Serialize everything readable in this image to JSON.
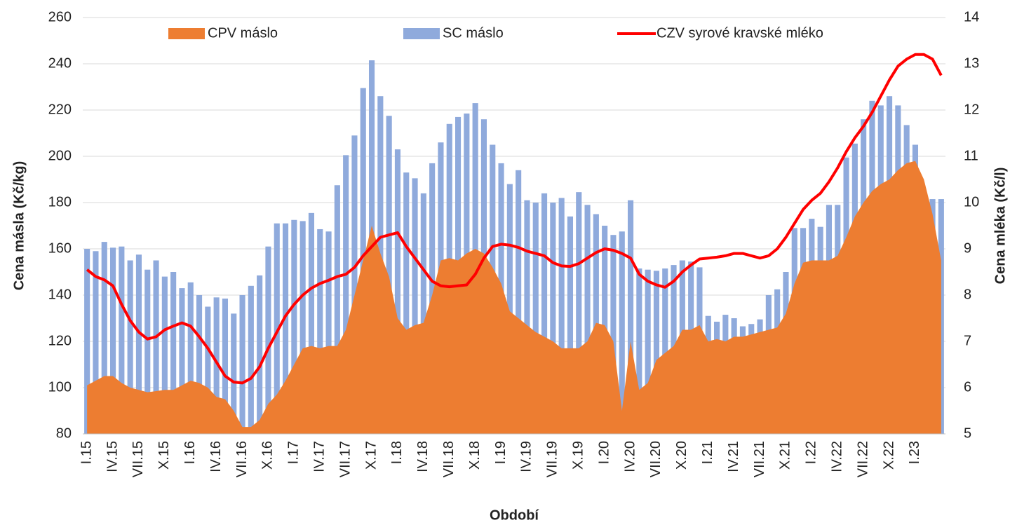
{
  "chart_data": {
    "type": "combo",
    "x_label": "Období",
    "y_label": "Cena másla (Kč/kg)",
    "y2_label": "Cena mléka (Kč/l)",
    "categories": [
      "I.15",
      null,
      null,
      "IV.15",
      null,
      null,
      "VII.15",
      null,
      null,
      "X.15",
      null,
      null,
      "I.16",
      null,
      null,
      "IV.16",
      null,
      null,
      "VII.16",
      null,
      null,
      "X.16",
      null,
      null,
      "I.17",
      null,
      null,
      "IV.17",
      null,
      null,
      "VII.17",
      null,
      null,
      "X.17",
      null,
      null,
      "I.18",
      null,
      null,
      "IV.18",
      null,
      null,
      "VII.18",
      null,
      null,
      "X.18",
      null,
      null,
      "I.19",
      null,
      null,
      "IV.19",
      null,
      null,
      "VII.19",
      null,
      null,
      "X.19",
      null,
      null,
      "I.20",
      null,
      null,
      "IV.20",
      null,
      null,
      "VII.20",
      null,
      null,
      "X.20",
      null,
      null,
      "I.21",
      null,
      null,
      "IV.21",
      null,
      null,
      "VII.21",
      null,
      null,
      "X.21",
      null,
      null,
      "I.22",
      null,
      null,
      "IV.22",
      null,
      null,
      "VII.22",
      null,
      null,
      "X.22",
      null,
      null,
      "I.23",
      null,
      null,
      null
    ],
    "ylim": [
      80,
      260
    ],
    "yticks": [
      80,
      100,
      120,
      140,
      160,
      180,
      200,
      220,
      240,
      260
    ],
    "y2lim": [
      5,
      14
    ],
    "y2ticks": [
      5,
      6,
      7,
      8,
      9,
      10,
      11,
      12,
      13,
      14
    ],
    "grid": true,
    "series": [
      {
        "name": "CPV máslo",
        "type": "area",
        "color": "#ed7d31",
        "values": [
          101,
          103,
          105,
          105,
          102,
          100,
          99,
          98,
          98.5,
          99,
          99,
          101,
          103,
          102,
          100,
          96,
          95,
          90,
          83,
          83,
          86,
          93,
          97,
          103,
          110,
          117,
          118,
          117,
          118,
          118,
          125,
          140,
          155,
          170,
          158,
          148,
          130,
          125,
          127,
          128,
          140,
          155,
          156,
          155,
          158,
          160,
          158,
          152,
          145,
          133,
          130,
          127,
          124,
          122,
          120,
          117,
          117,
          117,
          120,
          128,
          127,
          120,
          90,
          120,
          99,
          102,
          112,
          115,
          118,
          125,
          125,
          127,
          120,
          121,
          120,
          122,
          122,
          123,
          124,
          125,
          126,
          132,
          145,
          154,
          155,
          155,
          155,
          157,
          165,
          174,
          180,
          185,
          188,
          190,
          194,
          197,
          198,
          190,
          175,
          155
        ]
      },
      {
        "name": "SC máslo",
        "type": "bar",
        "color": "#8faadc",
        "values": [
          160,
          159,
          163,
          160.5,
          161,
          155,
          157.5,
          151,
          155,
          148,
          150,
          143,
          145.5,
          140,
          135,
          139,
          138.5,
          132,
          140,
          144,
          148.5,
          161,
          171,
          171,
          172.5,
          172,
          175.5,
          168.5,
          167.5,
          187.5,
          200.5,
          209,
          229.5,
          241.5,
          226,
          217.5,
          203,
          193,
          190.5,
          184,
          197,
          206,
          214,
          217,
          218.5,
          223,
          216,
          205,
          197,
          188,
          194,
          181,
          180,
          184,
          180,
          182,
          174,
          184.5,
          179,
          175,
          170,
          166,
          167.5,
          181,
          151.5,
          151,
          150.5,
          151.5,
          153,
          155,
          154.5,
          152,
          131,
          128.5,
          131.5,
          130,
          126.5,
          127.5,
          129.5,
          140,
          142.5,
          150,
          169,
          169,
          173,
          169.5,
          179,
          179,
          199.5,
          205.5,
          216,
          224,
          222,
          226,
          222,
          213.5,
          205,
          181.5,
          181.5,
          181.5
        ]
      },
      {
        "name": "CZV syrové kravské mléko",
        "type": "line",
        "axis": "y2",
        "color": "#ff0000",
        "values": [
          8.55,
          8.4,
          8.33,
          8.2,
          7.8,
          7.45,
          7.2,
          7.05,
          7.1,
          7.25,
          7.33,
          7.4,
          7.33,
          7.1,
          6.85,
          6.55,
          6.25,
          6.12,
          6.1,
          6.2,
          6.45,
          6.85,
          7.2,
          7.55,
          7.8,
          8.0,
          8.15,
          8.25,
          8.32,
          8.4,
          8.45,
          8.6,
          8.85,
          9.05,
          9.25,
          9.3,
          9.35,
          9.05,
          8.8,
          8.55,
          8.3,
          8.2,
          8.18,
          8.2,
          8.22,
          8.45,
          8.8,
          9.05,
          9.1,
          9.08,
          9.03,
          8.95,
          8.9,
          8.85,
          8.7,
          8.63,
          8.62,
          8.68,
          8.8,
          8.92,
          9.0,
          8.97,
          8.9,
          8.8,
          8.45,
          8.3,
          8.22,
          8.17,
          8.3,
          8.5,
          8.65,
          8.78,
          8.8,
          8.82,
          8.85,
          8.9,
          8.9,
          8.85,
          8.8,
          8.85,
          9.0,
          9.25,
          9.55,
          9.85,
          10.05,
          10.2,
          10.45,
          10.75,
          11.1,
          11.4,
          11.65,
          11.95,
          12.3,
          12.65,
          12.95,
          13.1,
          13.2,
          13.2,
          13.1,
          12.75
        ]
      }
    ]
  }
}
